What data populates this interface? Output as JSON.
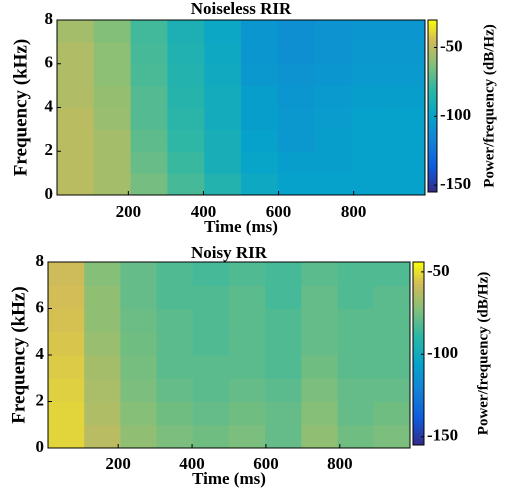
{
  "chart_data": [
    {
      "type": "heatmap",
      "title": "Noiseless RIR",
      "xlabel": "Time (ms)",
      "ylabel": "Frequency (kHz)",
      "colorbar_label": "Power/frequency (dB/Hz)",
      "colormap": "parula",
      "xlim": [
        10,
        990
      ],
      "xticks": [
        200,
        400,
        600,
        800
      ],
      "ylim": [
        0,
        8
      ],
      "yticks": [
        0,
        2,
        4,
        6,
        8
      ],
      "clim": [
        -155,
        -30
      ],
      "cticks": [
        -50,
        -100,
        -150
      ],
      "x": [
        59,
        157,
        255,
        353,
        451,
        549,
        647,
        745,
        843,
        941
      ],
      "y": [
        0.5,
        1.5,
        2.5,
        3.5,
        4.5,
        5.5,
        6.5,
        7.5
      ],
      "z": [
        [
          -50,
          -55,
          -65,
          -75,
          -85,
          -95,
          -100,
          -100,
          -100,
          -100
        ],
        [
          -50,
          -55,
          -68,
          -78,
          -90,
          -98,
          -102,
          -102,
          -100,
          -100
        ],
        [
          -50,
          -55,
          -70,
          -80,
          -90,
          -100,
          -105,
          -102,
          -100,
          -100
        ],
        [
          -50,
          -57,
          -72,
          -82,
          -92,
          -102,
          -105,
          -103,
          -100,
          -100
        ],
        [
          -52,
          -58,
          -72,
          -84,
          -92,
          -102,
          -106,
          -104,
          -102,
          -102
        ],
        [
          -52,
          -60,
          -74,
          -85,
          -94,
          -105,
          -108,
          -106,
          -104,
          -104
        ],
        [
          -52,
          -60,
          -75,
          -86,
          -95,
          -106,
          -110,
          -108,
          -105,
          -105
        ],
        [
          -55,
          -62,
          -76,
          -88,
          -96,
          -106,
          -110,
          -108,
          -106,
          -106
        ]
      ]
    },
    {
      "type": "heatmap",
      "title": "Noisy RIR",
      "xlabel": "Time (ms)",
      "ylabel": "Frequency (kHz)",
      "colorbar_label": "Power/frequency (dB/Hz)",
      "colormap": "parula",
      "xlim": [
        10,
        990
      ],
      "xticks": [
        200,
        400,
        600,
        800
      ],
      "ylim": [
        0,
        8
      ],
      "yticks": [
        0,
        2,
        4,
        6,
        8
      ],
      "clim": [
        -155,
        -44
      ],
      "cticks": [
        -50,
        -100,
        -150
      ],
      "x": [
        59,
        157,
        255,
        353,
        451,
        549,
        647,
        745,
        843,
        941
      ],
      "y": [
        0.5,
        1.5,
        2.5,
        3.5,
        4.5,
        5.5,
        6.5,
        7.5
      ],
      "z": [
        [
          -52,
          -62,
          -70,
          -74,
          -76,
          -74,
          -78,
          -70,
          -76,
          -74
        ],
        [
          -52,
          -64,
          -72,
          -76,
          -78,
          -76,
          -78,
          -72,
          -78,
          -76
        ],
        [
          -53,
          -65,
          -74,
          -78,
          -80,
          -78,
          -80,
          -74,
          -78,
          -78
        ],
        [
          -54,
          -66,
          -75,
          -80,
          -80,
          -80,
          -82,
          -76,
          -80,
          -80
        ],
        [
          -55,
          -68,
          -76,
          -80,
          -82,
          -80,
          -82,
          -78,
          -80,
          -80
        ],
        [
          -56,
          -70,
          -77,
          -80,
          -82,
          -80,
          -82,
          -78,
          -80,
          -80
        ],
        [
          -57,
          -70,
          -78,
          -82,
          -82,
          -80,
          -84,
          -78,
          -82,
          -80
        ],
        [
          -58,
          -72,
          -78,
          -82,
          -84,
          -82,
          -84,
          -80,
          -82,
          -82
        ]
      ]
    }
  ]
}
